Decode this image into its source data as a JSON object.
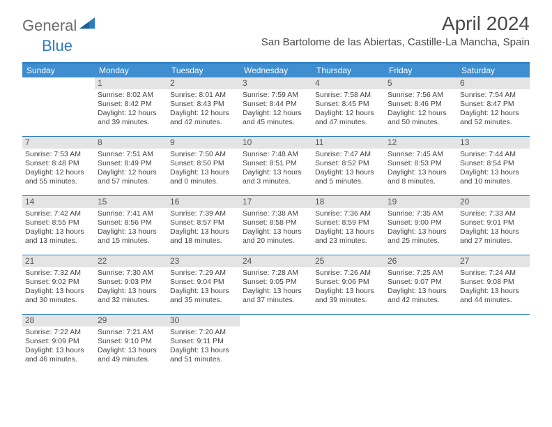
{
  "logo": {
    "part1": "General",
    "part2": "Blue"
  },
  "title": "April 2024",
  "location": "San Bartolome de las Abiertas, Castille-La Mancha, Spain",
  "colors": {
    "header_bg": "#3e8ed0",
    "border": "#2d7bc1",
    "daynum_bg": "#e4e4e4",
    "text": "#444444"
  },
  "day_names": [
    "Sunday",
    "Monday",
    "Tuesday",
    "Wednesday",
    "Thursday",
    "Friday",
    "Saturday"
  ],
  "weeks": [
    [
      null,
      {
        "n": "1",
        "sr": "8:02 AM",
        "ss": "8:42 PM",
        "d1": "12 hours",
        "d2": "and 39 minutes."
      },
      {
        "n": "2",
        "sr": "8:01 AM",
        "ss": "8:43 PM",
        "d1": "12 hours",
        "d2": "and 42 minutes."
      },
      {
        "n": "3",
        "sr": "7:59 AM",
        "ss": "8:44 PM",
        "d1": "12 hours",
        "d2": "and 45 minutes."
      },
      {
        "n": "4",
        "sr": "7:58 AM",
        "ss": "8:45 PM",
        "d1": "12 hours",
        "d2": "and 47 minutes."
      },
      {
        "n": "5",
        "sr": "7:56 AM",
        "ss": "8:46 PM",
        "d1": "12 hours",
        "d2": "and 50 minutes."
      },
      {
        "n": "6",
        "sr": "7:54 AM",
        "ss": "8:47 PM",
        "d1": "12 hours",
        "d2": "and 52 minutes."
      }
    ],
    [
      {
        "n": "7",
        "sr": "7:53 AM",
        "ss": "8:48 PM",
        "d1": "12 hours",
        "d2": "and 55 minutes."
      },
      {
        "n": "8",
        "sr": "7:51 AM",
        "ss": "8:49 PM",
        "d1": "12 hours",
        "d2": "and 57 minutes."
      },
      {
        "n": "9",
        "sr": "7:50 AM",
        "ss": "8:50 PM",
        "d1": "13 hours",
        "d2": "and 0 minutes."
      },
      {
        "n": "10",
        "sr": "7:48 AM",
        "ss": "8:51 PM",
        "d1": "13 hours",
        "d2": "and 3 minutes."
      },
      {
        "n": "11",
        "sr": "7:47 AM",
        "ss": "8:52 PM",
        "d1": "13 hours",
        "d2": "and 5 minutes."
      },
      {
        "n": "12",
        "sr": "7:45 AM",
        "ss": "8:53 PM",
        "d1": "13 hours",
        "d2": "and 8 minutes."
      },
      {
        "n": "13",
        "sr": "7:44 AM",
        "ss": "8:54 PM",
        "d1": "13 hours",
        "d2": "and 10 minutes."
      }
    ],
    [
      {
        "n": "14",
        "sr": "7:42 AM",
        "ss": "8:55 PM",
        "d1": "13 hours",
        "d2": "and 13 minutes."
      },
      {
        "n": "15",
        "sr": "7:41 AM",
        "ss": "8:56 PM",
        "d1": "13 hours",
        "d2": "and 15 minutes."
      },
      {
        "n": "16",
        "sr": "7:39 AM",
        "ss": "8:57 PM",
        "d1": "13 hours",
        "d2": "and 18 minutes."
      },
      {
        "n": "17",
        "sr": "7:38 AM",
        "ss": "8:58 PM",
        "d1": "13 hours",
        "d2": "and 20 minutes."
      },
      {
        "n": "18",
        "sr": "7:36 AM",
        "ss": "8:59 PM",
        "d1": "13 hours",
        "d2": "and 23 minutes."
      },
      {
        "n": "19",
        "sr": "7:35 AM",
        "ss": "9:00 PM",
        "d1": "13 hours",
        "d2": "and 25 minutes."
      },
      {
        "n": "20",
        "sr": "7:33 AM",
        "ss": "9:01 PM",
        "d1": "13 hours",
        "d2": "and 27 minutes."
      }
    ],
    [
      {
        "n": "21",
        "sr": "7:32 AM",
        "ss": "9:02 PM",
        "d1": "13 hours",
        "d2": "and 30 minutes."
      },
      {
        "n": "22",
        "sr": "7:30 AM",
        "ss": "9:03 PM",
        "d1": "13 hours",
        "d2": "and 32 minutes."
      },
      {
        "n": "23",
        "sr": "7:29 AM",
        "ss": "9:04 PM",
        "d1": "13 hours",
        "d2": "and 35 minutes."
      },
      {
        "n": "24",
        "sr": "7:28 AM",
        "ss": "9:05 PM",
        "d1": "13 hours",
        "d2": "and 37 minutes."
      },
      {
        "n": "25",
        "sr": "7:26 AM",
        "ss": "9:06 PM",
        "d1": "13 hours",
        "d2": "and 39 minutes."
      },
      {
        "n": "26",
        "sr": "7:25 AM",
        "ss": "9:07 PM",
        "d1": "13 hours",
        "d2": "and 42 minutes."
      },
      {
        "n": "27",
        "sr": "7:24 AM",
        "ss": "9:08 PM",
        "d1": "13 hours",
        "d2": "and 44 minutes."
      }
    ],
    [
      {
        "n": "28",
        "sr": "7:22 AM",
        "ss": "9:09 PM",
        "d1": "13 hours",
        "d2": "and 46 minutes."
      },
      {
        "n": "29",
        "sr": "7:21 AM",
        "ss": "9:10 PM",
        "d1": "13 hours",
        "d2": "and 49 minutes."
      },
      {
        "n": "30",
        "sr": "7:20 AM",
        "ss": "9:11 PM",
        "d1": "13 hours",
        "d2": "and 51 minutes."
      },
      null,
      null,
      null,
      null
    ]
  ],
  "labels": {
    "sunrise": "Sunrise:",
    "sunset": "Sunset:",
    "daylight": "Daylight:"
  }
}
